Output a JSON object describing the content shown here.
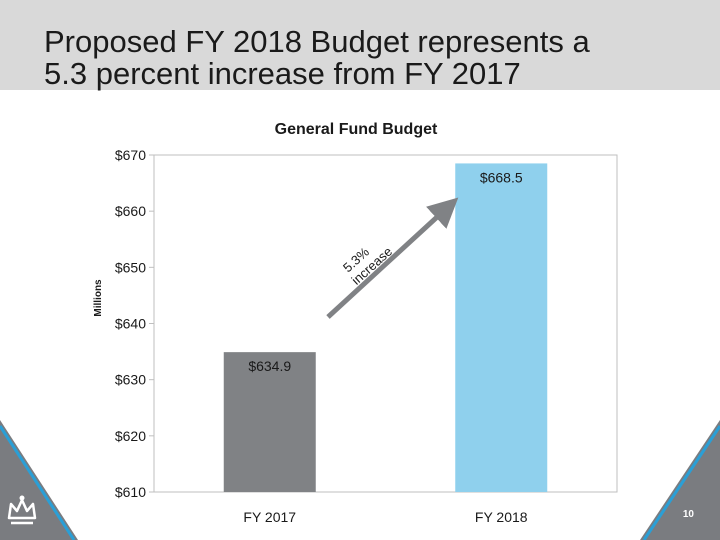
{
  "slide": {
    "title_line1": "Proposed FY 2018 Budget represents a",
    "title_line2": "5.3 percent increase from FY 2017",
    "page_number": "10"
  },
  "colors": {
    "title_band": "#d9d9d9",
    "bar_fy2017": "#808285",
    "bar_fy2018": "#8fd0ed",
    "arrow": "#808285",
    "corner_dark": "#7a7c80",
    "corner_accent": "#2a9fd6"
  },
  "logo": {
    "icon": "crown-icon"
  },
  "chart_data": {
    "type": "bar",
    "title": "General Fund Budget",
    "ylabel": "Millions",
    "xlabel": "",
    "categories": [
      "FY 2017",
      "FY 2018"
    ],
    "values": [
      634.9,
      668.5
    ],
    "data_labels": [
      "$634.9",
      "$668.5"
    ],
    "ylim": [
      610,
      670
    ],
    "yticks": [
      610,
      620,
      630,
      640,
      650,
      660,
      670
    ],
    "ytick_labels": [
      "$610",
      "$620",
      "$630",
      "$640",
      "$650",
      "$660",
      "$670"
    ],
    "grid": false,
    "legend": "none",
    "annotation": {
      "line1": "5.3%",
      "line2": "increase"
    }
  }
}
